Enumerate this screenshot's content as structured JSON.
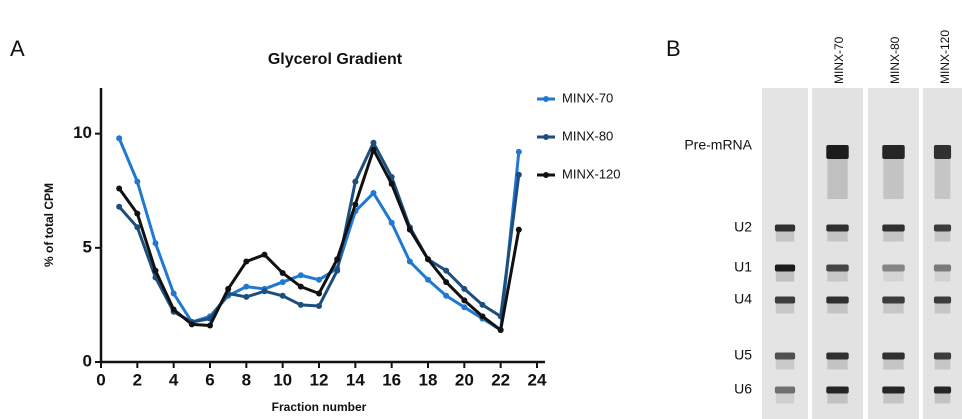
{
  "chart_data": {
    "type": "line",
    "title": "Glycerol Gradient",
    "x_label": "Fraction number",
    "y_label": "% of total CPM",
    "x": [
      1,
      2,
      3,
      4,
      5,
      6,
      7,
      8,
      9,
      10,
      11,
      12,
      13,
      14,
      15,
      16,
      17,
      18,
      19,
      20,
      21,
      22,
      23
    ],
    "series": [
      {
        "name": "MINX-70",
        "color": "#2079d0",
        "values": [
          9.8,
          7.9,
          5.2,
          3.0,
          1.75,
          2.0,
          2.9,
          3.3,
          3.2,
          3.5,
          3.8,
          3.6,
          4.1,
          6.6,
          7.4,
          6.1,
          4.4,
          3.6,
          2.9,
          2.4,
          1.9,
          1.4,
          9.2
        ]
      },
      {
        "name": "MINX-80",
        "color": "#1d4f7e",
        "values": [
          6.8,
          5.9,
          3.7,
          2.2,
          1.75,
          1.9,
          3.0,
          2.85,
          3.1,
          2.9,
          2.5,
          2.45,
          4.0,
          7.9,
          9.6,
          8.1,
          5.9,
          4.5,
          4.0,
          3.2,
          2.5,
          2.0,
          8.2
        ]
      },
      {
        "name": "MINX-120",
        "color": "#111111",
        "values": [
          7.6,
          6.5,
          4.0,
          2.3,
          1.65,
          1.6,
          3.2,
          4.4,
          4.7,
          3.9,
          3.3,
          3.0,
          4.5,
          6.9,
          9.3,
          7.8,
          5.8,
          4.5,
          3.5,
          2.7,
          2.0,
          1.4,
          5.8
        ]
      }
    ],
    "xlim": [
      0,
      24
    ],
    "xticks": [
      0,
      2,
      4,
      6,
      8,
      10,
      12,
      14,
      16,
      18,
      20,
      22,
      24
    ],
    "ylim": [
      0,
      12
    ],
    "yticks": [
      0,
      5,
      10
    ],
    "grid": false,
    "legend": "upper right"
  },
  "panel_labels": [
    "A",
    "B"
  ],
  "gel": {
    "lanes": [
      "MINX-70",
      "MINX-80",
      "MINX-120"
    ],
    "bands": [
      "Pre-mRNA",
      "U2",
      "U1",
      "U4",
      "U5",
      "U6"
    ]
  }
}
